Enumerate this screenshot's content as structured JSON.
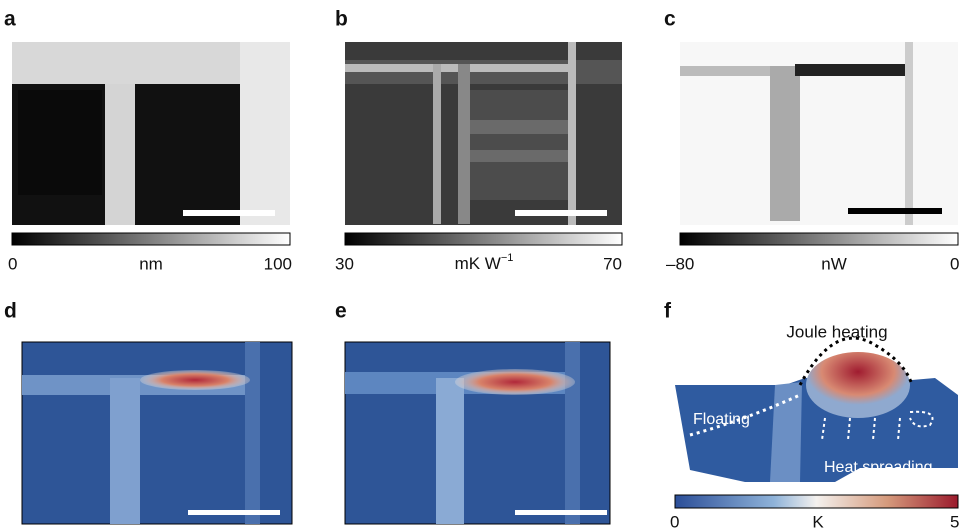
{
  "panels": [
    {
      "label": "a",
      "colorbar": {
        "min": "0",
        "unit": "nm",
        "max": "100"
      }
    },
    {
      "label": "b",
      "colorbar": {
        "min": "30",
        "unit": "mK W",
        "unit_sup": "−1",
        "max": "70"
      }
    },
    {
      "label": "c",
      "colorbar": {
        "min": "–80",
        "unit": "nW",
        "max": "0"
      }
    },
    {
      "label": "d"
    },
    {
      "label": "e"
    },
    {
      "label": "f",
      "annotations": [
        "Joule heating",
        "Floating",
        "Heat spreading"
      ],
      "colorbar": {
        "min": "0",
        "unit": "K",
        "max": "5"
      }
    }
  ]
}
